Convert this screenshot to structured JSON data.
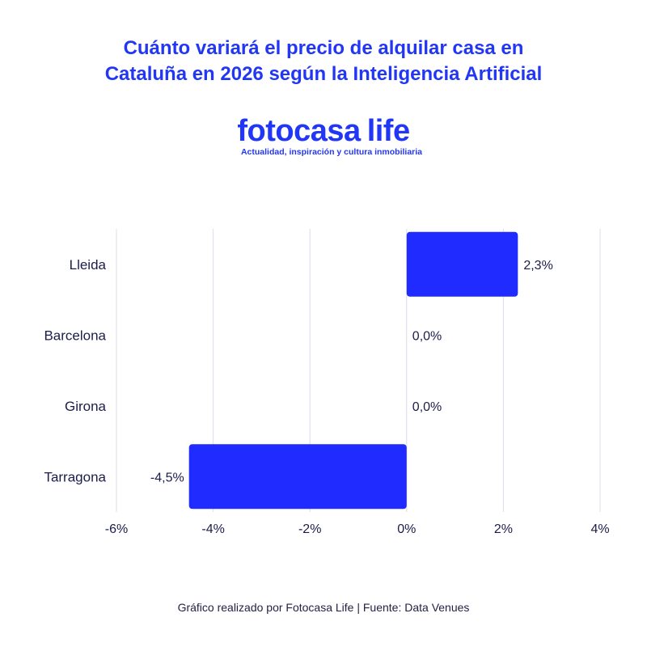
{
  "title_lines": [
    "Cuánto variará el precio de alquilar casa en",
    "Cataluña en 2026 según la Inteligencia Artificial"
  ],
  "logo": {
    "brand": "fotocasa",
    "life": "life",
    "tagline": "Actualidad, inspiración y cultura inmobiliaria"
  },
  "footer": "Gráfico realizado por Fotocasa Life | Fuente: Data Venues",
  "colors": {
    "accent": "#2236f5",
    "bar": "#1f2bff",
    "text": "#1c1c4a",
    "grid": "#dcdcea",
    "logo_dot": "#3bc0e0"
  },
  "chart_data": {
    "type": "bar",
    "orientation": "horizontal",
    "categories": [
      "Lleida",
      "Barcelona",
      "Girona",
      "Tarragona"
    ],
    "values": [
      2.3,
      0.0,
      0.0,
      -4.5
    ],
    "value_labels": [
      "2,3%",
      "0,0%",
      "0,0%",
      "-4,5%"
    ],
    "xlim": [
      -6,
      4
    ],
    "xticks": [
      -6,
      -4,
      -2,
      0,
      2,
      4
    ],
    "xtick_labels": [
      "-6%",
      "-4%",
      "-2%",
      "0%",
      "2%",
      "4%"
    ],
    "grid": true,
    "legend": "none"
  }
}
